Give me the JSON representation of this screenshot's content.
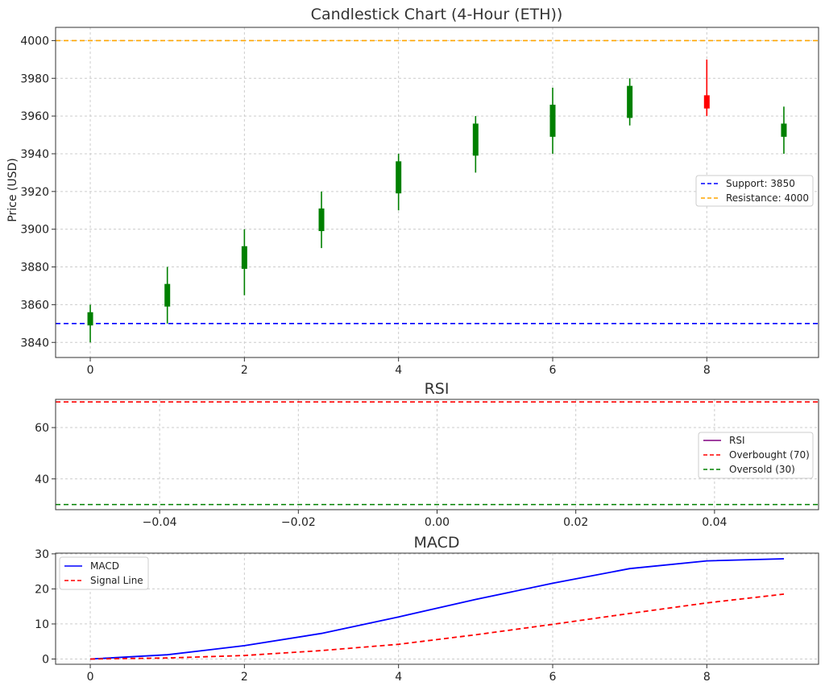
{
  "chart_data": [
    {
      "type": "candlestick",
      "title": "Candlestick Chart (4-Hour (ETH))",
      "ylabel": "Price (USD)",
      "xlabel": "",
      "xlim": [
        -0.45,
        9.45
      ],
      "ylim": [
        3832,
        4007
      ],
      "xticks": [
        0,
        2,
        4,
        6,
        8
      ],
      "yticks": [
        3840,
        3860,
        3880,
        3900,
        3920,
        3940,
        3960,
        3980,
        4000
      ],
      "grid": true,
      "legend_position": "center-right",
      "up_color": "#008000",
      "down_color": "#ff0000",
      "candles": [
        {
          "x": 0,
          "open": 3849,
          "close": 3856,
          "high": 3860,
          "low": 3840
        },
        {
          "x": 1,
          "open": 3859,
          "close": 3871,
          "high": 3880,
          "low": 3850
        },
        {
          "x": 2,
          "open": 3879,
          "close": 3891,
          "high": 3900,
          "low": 3865
        },
        {
          "x": 3,
          "open": 3899,
          "close": 3911,
          "high": 3920,
          "low": 3890
        },
        {
          "x": 4,
          "open": 3919,
          "close": 3936,
          "high": 3940,
          "low": 3910
        },
        {
          "x": 5,
          "open": 3939,
          "close": 3956,
          "high": 3960,
          "low": 3930
        },
        {
          "x": 6,
          "open": 3949,
          "close": 3966,
          "high": 3975,
          "low": 3940
        },
        {
          "x": 7,
          "open": 3959,
          "close": 3976,
          "high": 3980,
          "low": 3955
        },
        {
          "x": 8,
          "open": 3971,
          "close": 3964,
          "high": 3990,
          "low": 3960
        },
        {
          "x": 9,
          "open": 3949,
          "close": 3956,
          "high": 3965,
          "low": 3940
        }
      ],
      "hlines": [
        {
          "name": "Support: 3850",
          "value": 3850,
          "color": "#0000ff"
        },
        {
          "name": "Resistance: 4000",
          "value": 4000,
          "color": "#ffa500"
        }
      ]
    },
    {
      "type": "line",
      "title": "RSI",
      "xlim": [
        -0.055,
        0.055
      ],
      "ylim": [
        28,
        71
      ],
      "xticks": [
        -0.04,
        -0.02,
        0.0,
        0.02,
        0.04
      ],
      "xtick_labels": [
        "−0.04",
        "−0.02",
        "0.00",
        "0.02",
        "0.04"
      ],
      "yticks": [
        40,
        60
      ],
      "grid": true,
      "legend_position": "center-right",
      "series": [
        {
          "name": "RSI",
          "color": "#800080",
          "values": []
        }
      ],
      "hlines": [
        {
          "name": "Overbought (70)",
          "value": 70,
          "color": "#ff0000"
        },
        {
          "name": "Oversold (30)",
          "value": 30,
          "color": "#008000"
        }
      ]
    },
    {
      "type": "line",
      "title": "MACD",
      "xlim": [
        -0.45,
        9.45
      ],
      "ylim": [
        -1.5,
        30.2
      ],
      "xticks": [
        0,
        2,
        4,
        6,
        8
      ],
      "yticks": [
        0,
        10,
        20,
        30
      ],
      "grid": true,
      "legend_position": "top-left",
      "x": [
        0,
        1,
        2,
        3,
        4,
        5,
        6,
        7,
        8,
        9
      ],
      "series": [
        {
          "name": "MACD",
          "color": "#0000ff",
          "dashed": false,
          "values": [
            0,
            1.2,
            3.8,
            7.3,
            12.0,
            17.0,
            21.6,
            25.8,
            28.0,
            28.6
          ]
        },
        {
          "name": "Signal Line",
          "color": "#ff0000",
          "dashed": true,
          "values": [
            0,
            0.3,
            1.0,
            2.4,
            4.2,
            6.9,
            9.9,
            13.0,
            16.0,
            18.5
          ]
        }
      ]
    }
  ]
}
